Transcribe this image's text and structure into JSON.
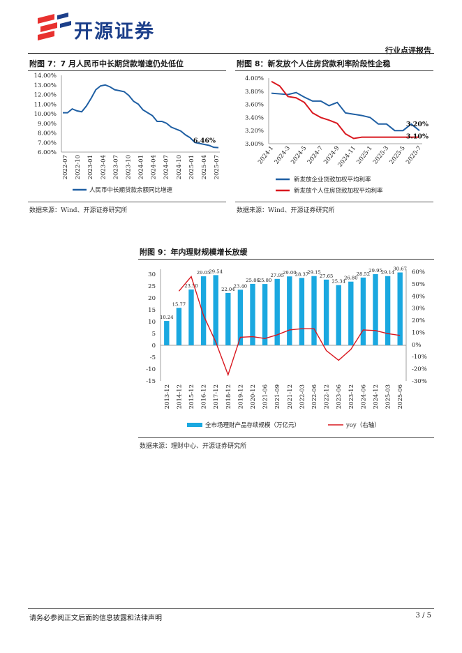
{
  "header": {
    "brand": "开源证券",
    "report_type": "行业点评报告",
    "logo_colors": {
      "red": "#e8312f",
      "blue": "#1c3f8a"
    }
  },
  "figures": [
    {
      "title": "附图 7：7 月人民币中长期贷款增速仍处低位",
      "source": "数据来源：Wind、开源证券研究所"
    },
    {
      "title": "附图 8：新发放个人住房贷款利率阶段性企稳",
      "source": "数据来源：Wind、开源证券研究所"
    },
    {
      "title": "附图 9：年内理财规模增长放缓",
      "source": "数据来源：理财中心、开源证券研究所"
    }
  ],
  "chart_data": [
    {
      "type": "line",
      "title": "附图 7：7 月人民币中长期贷款增速仍处低位",
      "ylim": [
        6,
        14
      ],
      "yticks": [
        "6.00%",
        "7.00%",
        "8.00%",
        "9.00%",
        "10.00%",
        "11.00%",
        "12.00%",
        "13.00%",
        "14.00%"
      ],
      "xticks": [
        "2022-07",
        "2022-10",
        "2023-01",
        "2023-04",
        "2023-07",
        "2023-10",
        "2024-01",
        "2024-04",
        "2024-07",
        "2024-10",
        "2025-01",
        "2025-04",
        "2025-07"
      ],
      "series": [
        {
          "name": "人民币中长期贷款余额同比增速",
          "color": "#1f5fa3",
          "values": [
            10.1,
            10.1,
            10.5,
            10.3,
            10.2,
            10.8,
            11.6,
            12.5,
            12.9,
            13.0,
            12.8,
            12.5,
            12.4,
            12.3,
            11.9,
            11.3,
            11.0,
            10.4,
            10.1,
            9.8,
            9.2,
            9.2,
            9.0,
            8.6,
            8.4,
            8.2,
            7.8,
            7.5,
            7.0,
            6.9,
            6.8,
            6.7,
            6.5,
            6.46
          ]
        }
      ],
      "annotation": "6.46%"
    },
    {
      "type": "line",
      "title": "附图 8：新发放个人住房贷款利率阶段性企稳",
      "ylim": [
        3.0,
        4.0
      ],
      "yticks": [
        "3.00%",
        "3.20%",
        "3.40%",
        "3.60%",
        "3.80%",
        "4.00%"
      ],
      "xticks": [
        "2024-1",
        "2024-3",
        "2024-5",
        "2024-7",
        "2024-9",
        "2024-11",
        "2025-1",
        "2025-3",
        "2025-5",
        "2025-7"
      ],
      "series": [
        {
          "name": "新发放企业贷款加权平均利率",
          "color": "#1f5fa3",
          "values": [
            3.77,
            3.76,
            3.75,
            3.78,
            3.71,
            3.65,
            3.65,
            3.58,
            3.63,
            3.47,
            3.45,
            3.43,
            3.4,
            3.3,
            3.3,
            3.2,
            3.2,
            3.3,
            3.2
          ]
        },
        {
          "name": "新发放个人住房贷款加权平均利率",
          "color": "#d9181f",
          "values": [
            3.95,
            3.88,
            3.72,
            3.7,
            3.63,
            3.47,
            3.4,
            3.36,
            3.31,
            3.15,
            3.08,
            3.1,
            3.1,
            3.1,
            3.1,
            3.1,
            3.1,
            3.1,
            3.1
          ]
        }
      ],
      "annotations": [
        "3.20%",
        "3.10%"
      ]
    },
    {
      "type": "bar",
      "title": "附图 9：年内理财规模增长放缓",
      "categories": [
        "2013-12",
        "2014-12",
        "2015-12",
        "2016-12",
        "2017-12",
        "2018-12",
        "2019-12",
        "2020-12",
        "2021-06",
        "2021-09",
        "2021-12",
        "2022-03",
        "2022-06",
        "2022-12",
        "2023-06",
        "2023-12",
        "2024-06",
        "2024-12",
        "2025-03",
        "2025-06"
      ],
      "series": [
        {
          "name": "全市场理财产品存续规模（万亿元）",
          "color": "#1aa8e0",
          "values": [
            10.24,
            15.77,
            23.5,
            29.05,
            29.54,
            22.04,
            23.4,
            25.86,
            25.8,
            27.95,
            29.0,
            28.37,
            29.15,
            27.65,
            25.34,
            26.8,
            28.52,
            29.95,
            29.14,
            30.67
          ],
          "labels": [
            "10.24",
            "15.77",
            "23.50",
            "29.05",
            "29.54",
            "22.04",
            "23.40",
            "25.86",
            "25.80",
            "27.95",
            "29.00",
            "28.37",
            "29.15",
            "27.65",
            "25.34",
            "26.80",
            "28.52",
            "29.95",
            "29.14",
            "30.67"
          ]
        },
        {
          "name": "yoy（右轴）",
          "color": "#d9181f",
          "type": "line",
          "values": [
            null,
            44,
            56,
            24,
            2,
            -25,
            6,
            6.5,
            5,
            8,
            12,
            13,
            13,
            -5,
            -13,
            -4,
            12,
            11.5,
            9,
            7.5
          ]
        }
      ],
      "yticks_left": [
        "-15",
        "-10",
        "-5",
        "0",
        "5",
        "10",
        "15",
        "20",
        "25",
        "30"
      ],
      "ylim_left": [
        -15,
        32
      ],
      "yticks_right": [
        "-30%",
        "-20%",
        "-10%",
        "0%",
        "10%",
        "20%",
        "30%",
        "40%",
        "50%",
        "60%"
      ],
      "ylim_right": [
        -30,
        62
      ]
    }
  ],
  "footer": {
    "disclaimer": "请务必参阅正文后面的信息披露和法律声明",
    "page": "3 / 5"
  }
}
